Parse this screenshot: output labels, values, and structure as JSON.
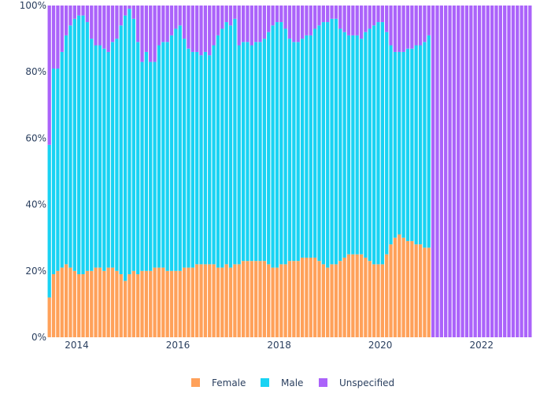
{
  "chart_data": {
    "type": "bar",
    "stacked": "percent",
    "x_axis": {
      "ticks": [
        "2014",
        "2016",
        "2018",
        "2020",
        "2022"
      ],
      "start": "2013-06",
      "end": "2022-12"
    },
    "y_axis": {
      "ticks": [
        "0%",
        "20%",
        "40%",
        "60%",
        "80%",
        "100%"
      ],
      "range": [
        0,
        100
      ]
    },
    "legend": {
      "position": "bottom-center"
    },
    "grid": false,
    "colors": {
      "Female": "#FFA15A",
      "Male": "#19D3F3",
      "Unspecified": "#AB63FA"
    },
    "series": [
      {
        "name": "Female",
        "values": [
          12,
          19,
          20,
          21,
          22,
          21,
          20,
          19,
          19,
          20,
          20,
          21,
          21,
          20,
          21,
          21,
          20,
          19,
          17,
          19,
          20,
          19,
          20,
          20,
          20,
          21,
          21,
          21,
          20,
          20,
          20,
          20,
          21,
          21,
          21,
          22,
          22,
          22,
          22,
          22,
          21,
          21,
          22,
          21,
          22,
          22,
          23,
          23,
          23,
          23,
          23,
          23,
          22,
          21,
          21,
          22,
          22,
          23,
          23,
          23,
          24,
          24,
          24,
          24,
          23,
          22,
          21,
          22,
          22,
          23,
          24,
          25,
          25,
          25,
          25,
          24,
          23,
          22,
          22,
          22,
          25,
          28,
          30,
          31,
          30,
          29,
          29,
          28,
          28,
          27,
          27,
          0,
          0,
          0,
          0,
          0,
          0,
          0,
          0,
          0,
          0,
          0,
          0,
          0,
          0,
          0,
          0,
          0,
          0,
          0,
          0,
          0,
          0,
          0,
          0,
          0
        ]
      },
      {
        "name": "Male",
        "values": [
          46,
          62,
          61,
          65,
          69,
          73,
          76,
          78,
          78,
          75,
          70,
          67,
          67,
          67,
          65,
          68,
          70,
          75,
          80,
          80,
          76,
          70,
          63,
          66,
          63,
          62,
          67,
          68,
          69,
          71,
          73,
          74,
          69,
          66,
          65,
          64,
          63,
          64,
          63,
          66,
          70,
          72,
          73,
          73,
          74,
          66,
          66,
          66,
          65,
          66,
          66,
          67,
          70,
          73,
          74,
          73,
          71,
          67,
          66,
          66,
          66,
          67,
          67,
          69,
          71,
          73,
          74,
          74,
          74,
          70,
          68,
          66,
          66,
          66,
          65,
          68,
          70,
          72,
          73,
          73,
          67,
          60,
          56,
          55,
          56,
          58,
          58,
          60,
          60,
          62,
          64,
          0,
          0,
          0,
          0,
          0,
          0,
          0,
          0,
          0,
          0,
          0,
          0,
          0,
          0,
          0,
          0,
          0,
          0,
          0,
          0,
          0,
          0,
          0,
          0,
          0
        ]
      },
      {
        "name": "Unspecified",
        "values": [
          42,
          19,
          19,
          14,
          9,
          6,
          4,
          3,
          3,
          5,
          10,
          12,
          12,
          13,
          14,
          11,
          10,
          6,
          3,
          1,
          4,
          11,
          17,
          14,
          17,
          17,
          12,
          11,
          11,
          9,
          7,
          6,
          10,
          13,
          14,
          14,
          15,
          14,
          15,
          12,
          9,
          7,
          5,
          6,
          4,
          12,
          11,
          11,
          12,
          11,
          11,
          10,
          8,
          6,
          5,
          5,
          7,
          10,
          11,
          11,
          10,
          9,
          9,
          7,
          6,
          5,
          5,
          4,
          4,
          7,
          8,
          9,
          9,
          9,
          10,
          8,
          7,
          6,
          5,
          5,
          8,
          12,
          14,
          14,
          14,
          13,
          13,
          12,
          12,
          11,
          9,
          100,
          100,
          100,
          100,
          100,
          100,
          100,
          100,
          100,
          100,
          100,
          100,
          100,
          100,
          100,
          100,
          100,
          100,
          100,
          100,
          100,
          100,
          100,
          100,
          100
        ]
      }
    ]
  }
}
